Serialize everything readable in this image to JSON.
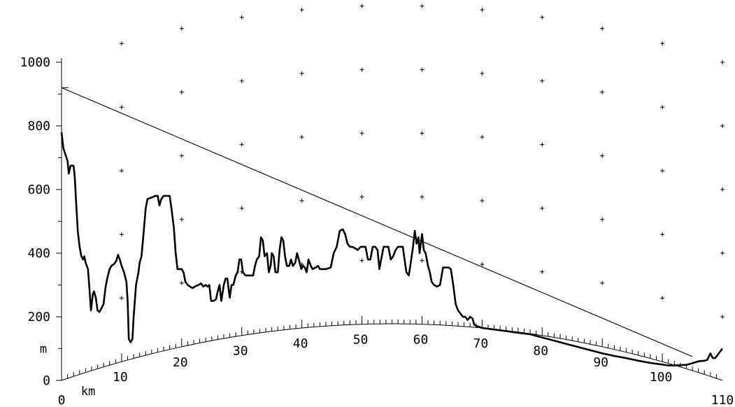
{
  "chart_data": {
    "type": "line",
    "title": "",
    "xlabel": "km",
    "ylabel": "m",
    "xlim": [
      0,
      110
    ],
    "ylim": [
      0,
      1000
    ],
    "y_ticks": [
      {
        "value": 0,
        "label": "0"
      },
      {
        "value": 200,
        "label": "200"
      },
      {
        "value": 400,
        "label": "400"
      },
      {
        "value": 600,
        "label": "600"
      },
      {
        "value": 800,
        "label": "800"
      },
      {
        "value": 1000,
        "label": "1000"
      }
    ],
    "x_ticks": [
      {
        "value": 0,
        "label": "0"
      },
      {
        "value": 110,
        "label": "110"
      }
    ],
    "curve_tick_labels": [
      "10",
      "20",
      "30",
      "40",
      "50",
      "60",
      "70",
      "80",
      "90",
      "100"
    ],
    "earth_bulge_peak_m": 178,
    "series": [
      {
        "points": [
          [
            0,
            780
          ],
          [
            0.3,
            730
          ],
          [
            1,
            690
          ],
          [
            1.2,
            650
          ],
          [
            1.5,
            675
          ],
          [
            2,
            675
          ],
          [
            2.2,
            640
          ],
          [
            2.4,
            570
          ],
          [
            2.7,
            470
          ],
          [
            3,
            420
          ],
          [
            3.3,
            390
          ],
          [
            3.6,
            380
          ],
          [
            3.8,
            390
          ],
          [
            4,
            370
          ],
          [
            4.4,
            350
          ],
          [
            4.6,
            300
          ],
          [
            4.9,
            220
          ],
          [
            5.2,
            270
          ],
          [
            5.4,
            280
          ],
          [
            5.7,
            260
          ],
          [
            6,
            220
          ],
          [
            6.3,
            215
          ],
          [
            6.6,
            225
          ],
          [
            7,
            240
          ],
          [
            7.3,
            290
          ],
          [
            7.6,
            320
          ],
          [
            8,
            350
          ],
          [
            8.3,
            360
          ],
          [
            8.7,
            365
          ],
          [
            9.1,
            375
          ],
          [
            9.4,
            395
          ],
          [
            9.7,
            380
          ],
          [
            10,
            360
          ],
          [
            10.4,
            340
          ],
          [
            10.8,
            310
          ],
          [
            11,
            250
          ],
          [
            11.2,
            130
          ],
          [
            11.5,
            120
          ],
          [
            11.8,
            130
          ],
          [
            12,
            200
          ],
          [
            12.4,
            300
          ],
          [
            12.8,
            340
          ],
          [
            13,
            370
          ],
          [
            13.3,
            390
          ],
          [
            13.6,
            450
          ],
          [
            14,
            540
          ],
          [
            14.3,
            570
          ],
          [
            15,
            575
          ],
          [
            15.6,
            580
          ],
          [
            16,
            580
          ],
          [
            16.3,
            550
          ],
          [
            16.6,
            570
          ],
          [
            17,
            580
          ],
          [
            17.5,
            580
          ],
          [
            18,
            580
          ],
          [
            18.3,
            540
          ],
          [
            18.7,
            480
          ],
          [
            19,
            400
          ],
          [
            19.3,
            350
          ],
          [
            20,
            350
          ],
          [
            20.3,
            340
          ],
          [
            20.6,
            310
          ],
          [
            21,
            300
          ],
          [
            21.4,
            295
          ],
          [
            21.8,
            290
          ],
          [
            22.2,
            295
          ],
          [
            22.8,
            300
          ],
          [
            23.2,
            305
          ],
          [
            23.6,
            295
          ],
          [
            24,
            300
          ],
          [
            24.3,
            295
          ],
          [
            24.6,
            300
          ],
          [
            24.9,
            250
          ],
          [
            25.3,
            250
          ],
          [
            25.7,
            255
          ],
          [
            26,
            280
          ],
          [
            26.3,
            300
          ],
          [
            26.6,
            250
          ],
          [
            27,
            300
          ],
          [
            27.3,
            320
          ],
          [
            27.6,
            320
          ],
          [
            28,
            260
          ],
          [
            28.3,
            300
          ],
          [
            28.6,
            300
          ],
          [
            29,
            330
          ],
          [
            29.3,
            340
          ],
          [
            29.6,
            380
          ],
          [
            29.9,
            380
          ],
          [
            30.2,
            340
          ],
          [
            30.6,
            330
          ],
          [
            31,
            330
          ],
          [
            31.5,
            330
          ],
          [
            31.9,
            330
          ],
          [
            32.2,
            360
          ],
          [
            32.5,
            380
          ],
          [
            32.9,
            390
          ],
          [
            33.2,
            450
          ],
          [
            33.5,
            440
          ],
          [
            33.8,
            390
          ],
          [
            34.2,
            400
          ],
          [
            34.5,
            340
          ],
          [
            34.8,
            360
          ],
          [
            35,
            400
          ],
          [
            35.3,
            390
          ],
          [
            35.6,
            340
          ],
          [
            36,
            340
          ],
          [
            36.3,
            410
          ],
          [
            36.6,
            450
          ],
          [
            36.9,
            440
          ],
          [
            37.2,
            390
          ],
          [
            37.5,
            360
          ],
          [
            37.9,
            360
          ],
          [
            38.2,
            380
          ],
          [
            38.5,
            360
          ],
          [
            38.9,
            370
          ],
          [
            39.2,
            400
          ],
          [
            39.5,
            380
          ],
          [
            39.9,
            350
          ],
          [
            40.2,
            360
          ],
          [
            40.5,
            355
          ],
          [
            40.8,
            340
          ],
          [
            41.1,
            380
          ],
          [
            41.5,
            360
          ],
          [
            41.8,
            350
          ],
          [
            42.3,
            355
          ],
          [
            42.7,
            360
          ],
          [
            43,
            350
          ],
          [
            44,
            350
          ],
          [
            44.8,
            355
          ],
          [
            45.3,
            400
          ],
          [
            45.8,
            420
          ],
          [
            46.3,
            470
          ],
          [
            46.8,
            475
          ],
          [
            47.2,
            460
          ],
          [
            47.6,
            430
          ],
          [
            48,
            420
          ],
          [
            48.4,
            420
          ],
          [
            48.9,
            415
          ],
          [
            49.3,
            410
          ],
          [
            49.8,
            420
          ],
          [
            50.2,
            420
          ],
          [
            50.6,
            420
          ],
          [
            51,
            380
          ],
          [
            51.4,
            380
          ],
          [
            51.8,
            420
          ],
          [
            52.2,
            420
          ],
          [
            52.6,
            410
          ],
          [
            52.9,
            350
          ],
          [
            53.3,
            390
          ],
          [
            53.6,
            420
          ],
          [
            54,
            420
          ],
          [
            54.4,
            420
          ],
          [
            54.8,
            380
          ],
          [
            55.2,
            390
          ],
          [
            55.6,
            410
          ],
          [
            56,
            420
          ],
          [
            56.4,
            420
          ],
          [
            56.8,
            420
          ],
          [
            57.1,
            380
          ],
          [
            57.4,
            340
          ],
          [
            57.8,
            330
          ],
          [
            58.2,
            380
          ],
          [
            58.5,
            420
          ],
          [
            58.8,
            470
          ],
          [
            59.1,
            430
          ],
          [
            59.4,
            450
          ],
          [
            59.6,
            400
          ],
          [
            60,
            460
          ],
          [
            60.3,
            410
          ],
          [
            60.6,
            400
          ],
          [
            61,
            360
          ],
          [
            61.3,
            340
          ],
          [
            61.6,
            310
          ],
          [
            62,
            300
          ],
          [
            62.5,
            295
          ],
          [
            63,
            300
          ],
          [
            63.5,
            355
          ],
          [
            64,
            355
          ],
          [
            64.4,
            355
          ],
          [
            64.8,
            350
          ],
          [
            65.2,
            300
          ],
          [
            65.6,
            240
          ],
          [
            66,
            220
          ],
          [
            66.4,
            210
          ],
          [
            66.8,
            200
          ],
          [
            67.2,
            200
          ],
          [
            67.6,
            190
          ],
          [
            68,
            200
          ],
          [
            68.4,
            195
          ],
          [
            68.7,
            175
          ],
          [
            69.2,
            170
          ],
          [
            70,
            165
          ],
          [
            72,
            160
          ],
          [
            74,
            155
          ],
          [
            76,
            150
          ],
          [
            78,
            145
          ],
          [
            80,
            135
          ],
          [
            82,
            125
          ],
          [
            84,
            115
          ],
          [
            86,
            105
          ],
          [
            88,
            95
          ],
          [
            90,
            85
          ],
          [
            92,
            77
          ],
          [
            94,
            70
          ],
          [
            96,
            62
          ],
          [
            98,
            55
          ],
          [
            100,
            50
          ],
          [
            101,
            47
          ],
          [
            102,
            47
          ],
          [
            104,
            49
          ],
          [
            105,
            54
          ],
          [
            106,
            60
          ],
          [
            107,
            62
          ],
          [
            107.5,
            65
          ],
          [
            108,
            85
          ],
          [
            108.4,
            70
          ],
          [
            108.8,
            70
          ],
          [
            109.2,
            80
          ],
          [
            110,
            100
          ]
        ]
      },
      {
        "points": [
          [
            0,
            920
          ],
          [
            105,
            75
          ]
        ]
      }
    ]
  }
}
